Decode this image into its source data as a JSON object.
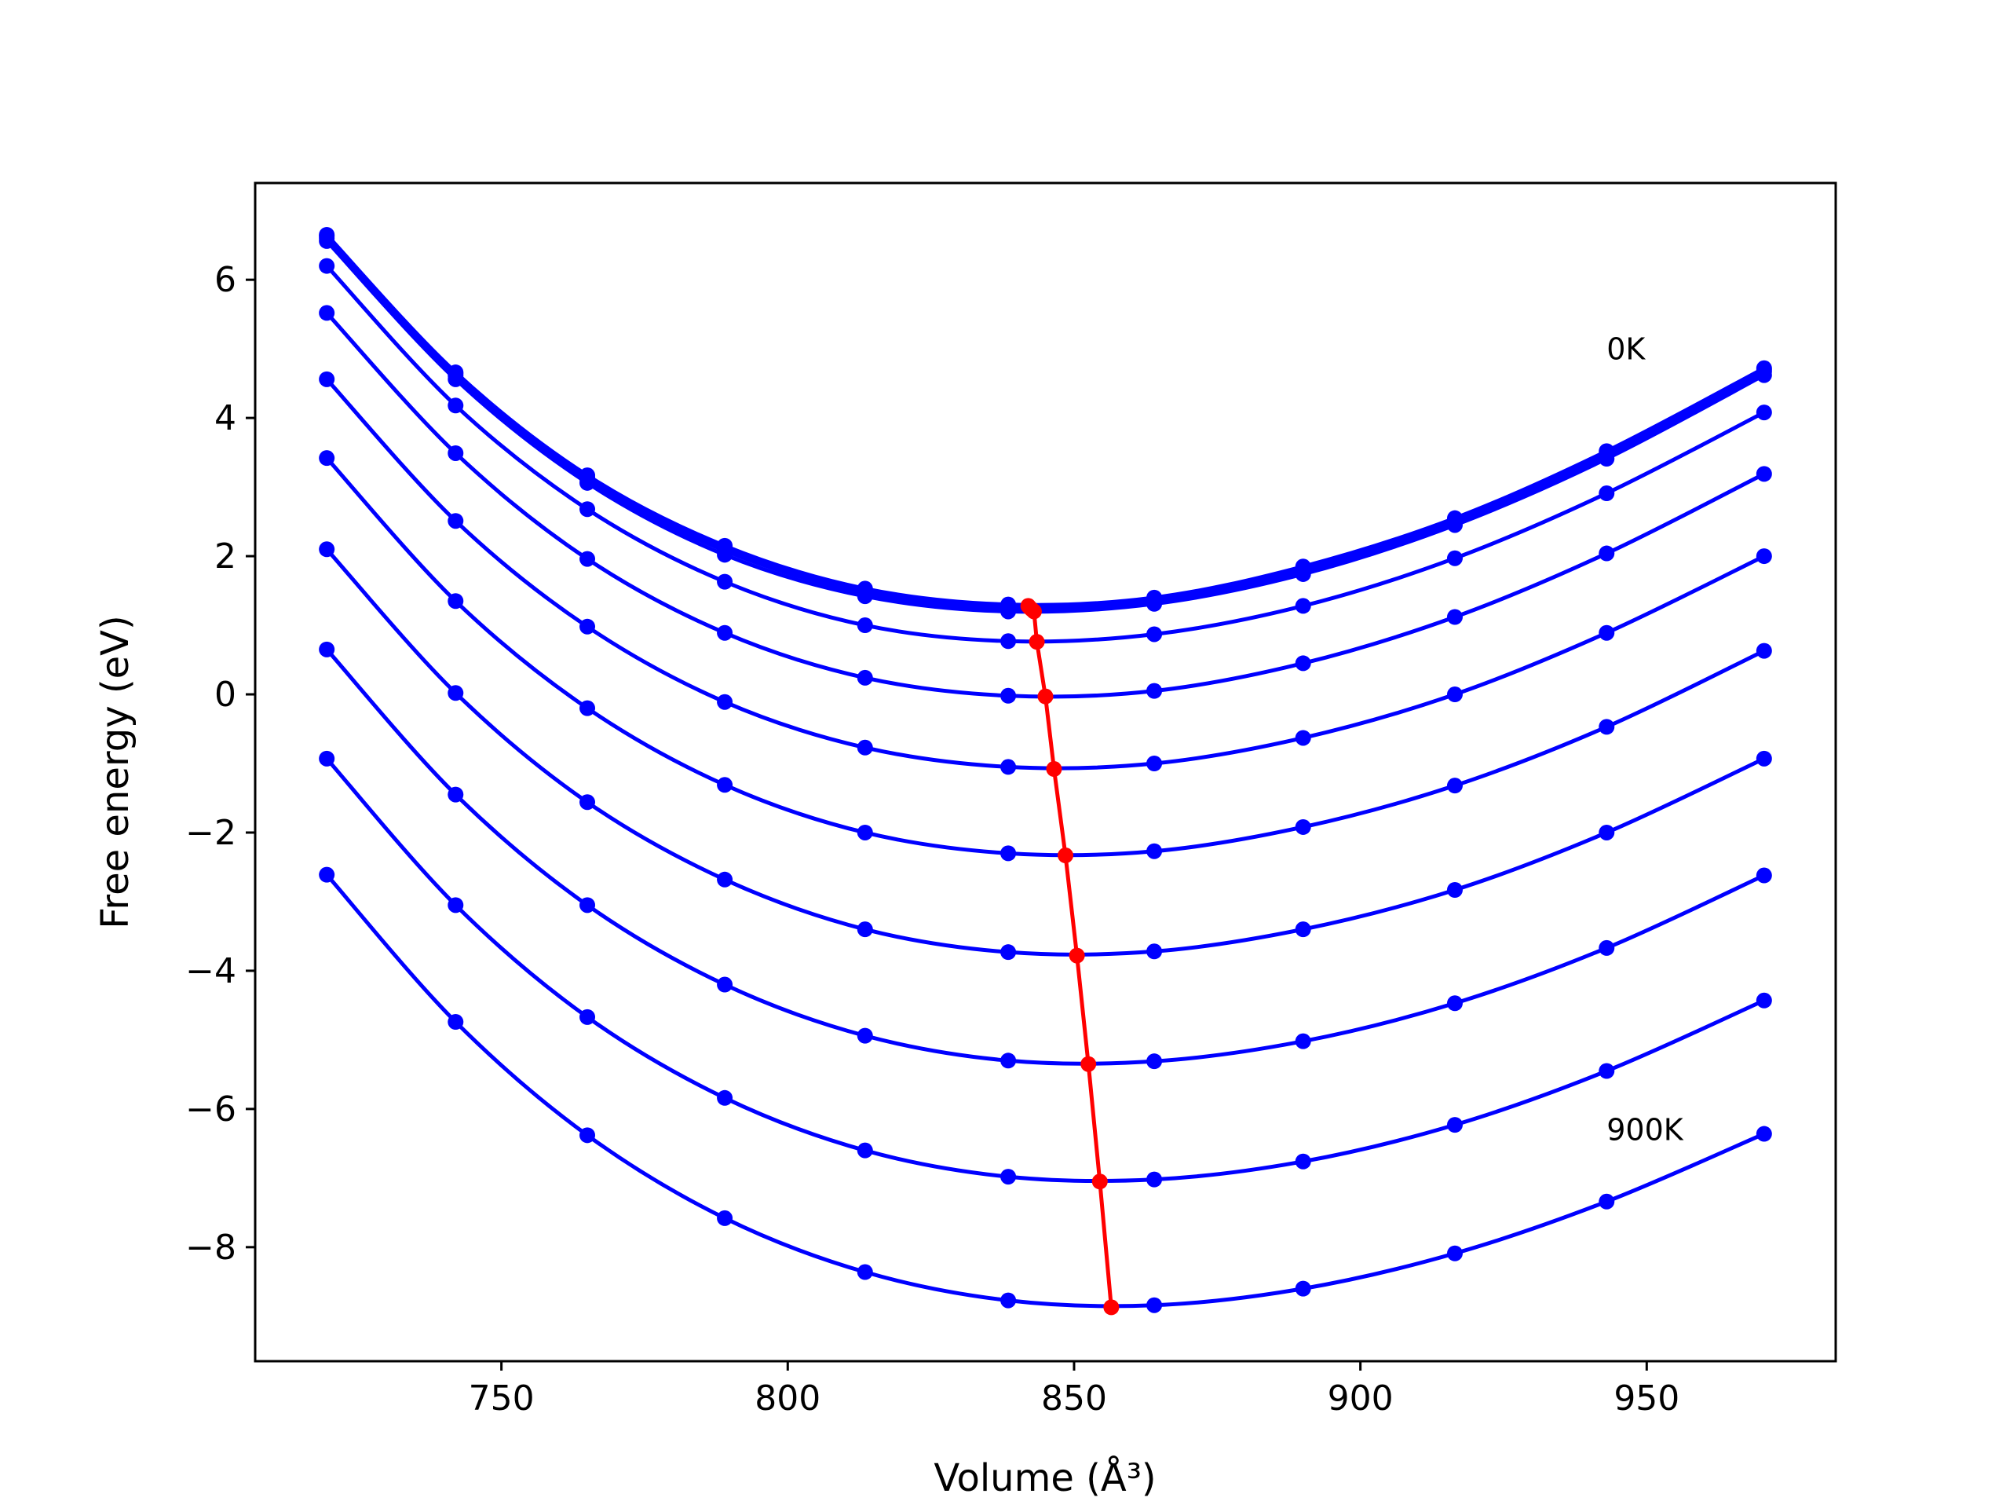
{
  "chart_data": {
    "type": "line",
    "title": "",
    "xlabel": "Volume (Å³)",
    "ylabel": "Free energy (eV)",
    "xlim": [
      707,
      983
    ],
    "ylim": [
      -9.65,
      7.4
    ],
    "xticks": [
      750,
      800,
      850,
      900,
      950
    ],
    "yticks": [
      6,
      4,
      2,
      0,
      -2,
      -4,
      -6,
      -8
    ],
    "xtick_labels": [
      "750",
      "800",
      "850",
      "900",
      "950"
    ],
    "ytick_labels": [
      "6",
      "4",
      "2",
      "0",
      "−2",
      "−4",
      "−6",
      "−8"
    ],
    "grid": false,
    "legend": "none",
    "x": [
      719.5,
      742.0,
      765.0,
      789.0,
      813.5,
      838.5,
      864.0,
      890.0,
      916.5,
      943.0,
      970.5
    ],
    "series": [
      {
        "color": "#0000ff",
        "values": [
          6.65,
          4.66,
          3.17,
          2.15,
          1.53,
          1.3,
          1.4,
          1.85,
          2.55,
          3.52,
          4.72
        ]
      },
      {
        "color": "#0000ff",
        "values": [
          6.63,
          4.64,
          3.14,
          2.11,
          1.5,
          1.27,
          1.38,
          1.82,
          2.53,
          3.49,
          4.7
        ]
      },
      {
        "color": "#0000ff",
        "values": [
          6.6,
          4.61,
          3.11,
          2.08,
          1.47,
          1.24,
          1.35,
          1.79,
          2.5,
          3.46,
          4.67
        ]
      },
      {
        "color": "#0000ff",
        "values": [
          6.56,
          4.56,
          3.06,
          2.02,
          1.42,
          1.2,
          1.31,
          1.74,
          2.45,
          3.41,
          4.62
        ]
      },
      {
        "color": "#0000ff",
        "values": [
          6.2,
          4.18,
          2.68,
          1.63,
          1.0,
          0.77,
          0.87,
          1.28,
          1.97,
          2.91,
          4.08
        ]
      },
      {
        "color": "#0000ff",
        "values": [
          5.52,
          3.49,
          1.96,
          0.89,
          0.24,
          -0.02,
          0.05,
          0.45,
          1.12,
          2.04,
          3.19
        ]
      },
      {
        "color": "#0000ff",
        "values": [
          4.56,
          2.51,
          0.98,
          -0.11,
          -0.77,
          -1.05,
          -1.0,
          -0.63,
          0.0,
          0.89,
          2.0
        ]
      },
      {
        "color": "#0000ff",
        "values": [
          3.42,
          1.35,
          -0.2,
          -1.31,
          -2.0,
          -2.3,
          -2.27,
          -1.92,
          -1.32,
          -0.47,
          0.63
        ]
      },
      {
        "color": "#0000ff",
        "values": [
          2.1,
          0.02,
          -1.56,
          -2.68,
          -3.4,
          -3.73,
          -3.72,
          -3.4,
          -2.83,
          -2.0,
          -0.93
        ]
      },
      {
        "color": "#0000ff",
        "values": [
          0.65,
          -1.45,
          -3.05,
          -4.2,
          -4.94,
          -5.3,
          -5.31,
          -5.02,
          -4.47,
          -3.67,
          -2.62
        ]
      },
      {
        "color": "#0000ff",
        "values": [
          -0.93,
          -3.05,
          -4.67,
          -5.84,
          -6.6,
          -6.98,
          -7.02,
          -6.76,
          -6.23,
          -5.45,
          -4.43
        ]
      },
      {
        "color": "#0000ff",
        "values": [
          -2.61,
          -4.74,
          -6.38,
          -7.58,
          -8.36,
          -8.77,
          -8.84,
          -8.6,
          -8.09,
          -7.34,
          -6.36
        ]
      }
    ],
    "minima_curve": {
      "color": "#ff0000",
      "x": [
        842.0,
        842.2,
        842.6,
        843.0,
        843.5,
        845.0,
        846.5,
        848.5,
        850.5,
        852.5,
        854.5,
        856.5
      ],
      "y": [
        1.28,
        1.26,
        1.23,
        1.2,
        0.76,
        -0.03,
        -1.08,
        -2.33,
        -3.78,
        -5.35,
        -7.05,
        -8.87
      ]
    },
    "annotations": [
      {
        "text": "0K",
        "x": 943.0,
        "y": 4.85
      },
      {
        "text": "900K",
        "x": 943.0,
        "y": -6.45
      }
    ]
  }
}
